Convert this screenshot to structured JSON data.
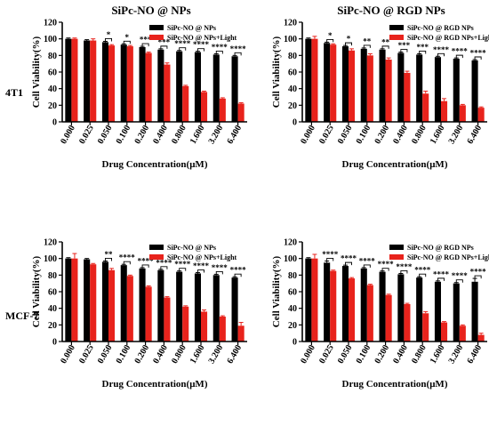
{
  "figure": {
    "col_titles": [
      "SiPc-NO @ NPs",
      "SiPc-NO @ RGD NPs"
    ],
    "row_labels": [
      "4T1",
      "MCF-7"
    ],
    "colors": {
      "dark": "#000000",
      "light": "#e8231c"
    }
  },
  "chart_data": [
    {
      "type": "bar",
      "categories": [
        "0.000",
        "0.025",
        "0.050",
        "0.100",
        "0.200",
        "0.400",
        "0.800",
        "1.600",
        "3.200",
        "6.400"
      ],
      "xlabel": "Drug Concentration(μM)",
      "ylabel": "Cell Viability(%)",
      "ylim": [
        0,
        120
      ],
      "yticks": [
        0,
        20,
        40,
        60,
        80,
        100,
        120
      ],
      "legend": "top-right",
      "series": [
        {
          "name": "SiPc-NO @ NPs",
          "values": [
            100,
            98,
            96,
            93,
            90,
            87,
            85,
            84,
            81,
            79
          ],
          "errors": [
            1,
            1,
            1,
            1,
            1,
            1,
            1,
            1,
            1,
            1
          ]
        },
        {
          "name": "SiPc-NO @ NPs+Light",
          "values": [
            100,
            98,
            92,
            91,
            83,
            69,
            43,
            36,
            28,
            22
          ],
          "errors": [
            1,
            2,
            1,
            1,
            1,
            2,
            1,
            1,
            1,
            1
          ]
        }
      ],
      "significance": [
        "",
        "",
        "*",
        "*",
        "***",
        "***",
        "****",
        "****",
        "****",
        "****"
      ]
    },
    {
      "type": "bar",
      "categories": [
        "0.000",
        "0.025",
        "0.050",
        "0.100",
        "0.200",
        "0.400",
        "0.800",
        "1.600",
        "3.200",
        "6.400"
      ],
      "xlabel": "Drug Concentration(μM)",
      "ylabel": "Cell Viability(%)",
      "ylim": [
        0,
        120
      ],
      "yticks": [
        0,
        20,
        40,
        60,
        80,
        100,
        120
      ],
      "legend": "top-right",
      "series": [
        {
          "name": "SiPc-NO @ RGD NPs",
          "values": [
            100,
            95,
            91,
            88,
            87,
            83,
            81,
            78,
            76,
            74
          ],
          "errors": [
            1,
            1,
            1,
            1,
            1,
            1,
            1,
            1,
            1,
            1
          ]
        },
        {
          "name": "SiPc-NO @ RGD NPs+Light",
          "values": [
            100,
            93,
            86,
            80,
            75,
            59,
            34,
            25,
            20,
            17
          ],
          "errors": [
            3,
            1,
            2,
            2,
            2,
            2,
            3,
            3,
            1,
            1
          ]
        }
      ],
      "significance": [
        "",
        "*",
        "*",
        "**",
        "**",
        "***",
        "***",
        "****",
        "****",
        "****"
      ]
    },
    {
      "type": "bar",
      "categories": [
        "0.000",
        "0.025",
        "0.050",
        "0.100",
        "0.200",
        "0.400",
        "0.800",
        "1.600",
        "3.200",
        "6.400"
      ],
      "xlabel": "Drug Concentration(μM)",
      "ylabel": "Cell Viability(%)",
      "ylim": [
        0,
        120
      ],
      "yticks": [
        0,
        20,
        40,
        60,
        80,
        100,
        120
      ],
      "legend": "top-right",
      "series": [
        {
          "name": "SiPc-NO @ NPs",
          "values": [
            100,
            99,
            96,
            92,
            88,
            86,
            84,
            82,
            80,
            77
          ],
          "errors": [
            1,
            1,
            1,
            1,
            1,
            1,
            1,
            1,
            1,
            1
          ]
        },
        {
          "name": "SiPc-NO @ NPs+Light",
          "values": [
            100,
            93,
            86,
            79,
            66,
            53,
            42,
            36,
            30,
            19
          ],
          "errors": [
            6,
            1,
            2,
            1,
            1,
            1,
            1,
            2,
            1,
            4
          ]
        }
      ],
      "significance": [
        "",
        "",
        "**",
        "****",
        "****",
        "****",
        "****",
        "****",
        "****",
        "****"
      ]
    },
    {
      "type": "bar",
      "categories": [
        "0.000",
        "0.025",
        "0.050",
        "0.100",
        "0.200",
        "0.400",
        "0.800",
        "1.600",
        "3.200",
        "6.400"
      ],
      "xlabel": "Drug Concentration(μM)",
      "ylabel": "Cell Viability(%)",
      "ylim": [
        0,
        120
      ],
      "yticks": [
        0,
        20,
        40,
        60,
        80,
        100,
        120
      ],
      "legend": "top-right",
      "series": [
        {
          "name": "SiPc-NO @ RGD NPs",
          "values": [
            100,
            95,
            91,
            88,
            84,
            81,
            77,
            72,
            70,
            72
          ],
          "errors": [
            1,
            2,
            1,
            1,
            1,
            1,
            1,
            1,
            1,
            4
          ]
        },
        {
          "name": "SiPc-NO @ RGD NPs+Light",
          "values": [
            100,
            85,
            76,
            68,
            56,
            45,
            34,
            23,
            19,
            8
          ],
          "errors": [
            5,
            1,
            1,
            1,
            1,
            1,
            2,
            1,
            1,
            2
          ]
        }
      ],
      "significance": [
        "",
        "****",
        "****",
        "****",
        "****",
        "****",
        "****",
        "****",
        "****",
        "****"
      ]
    }
  ]
}
